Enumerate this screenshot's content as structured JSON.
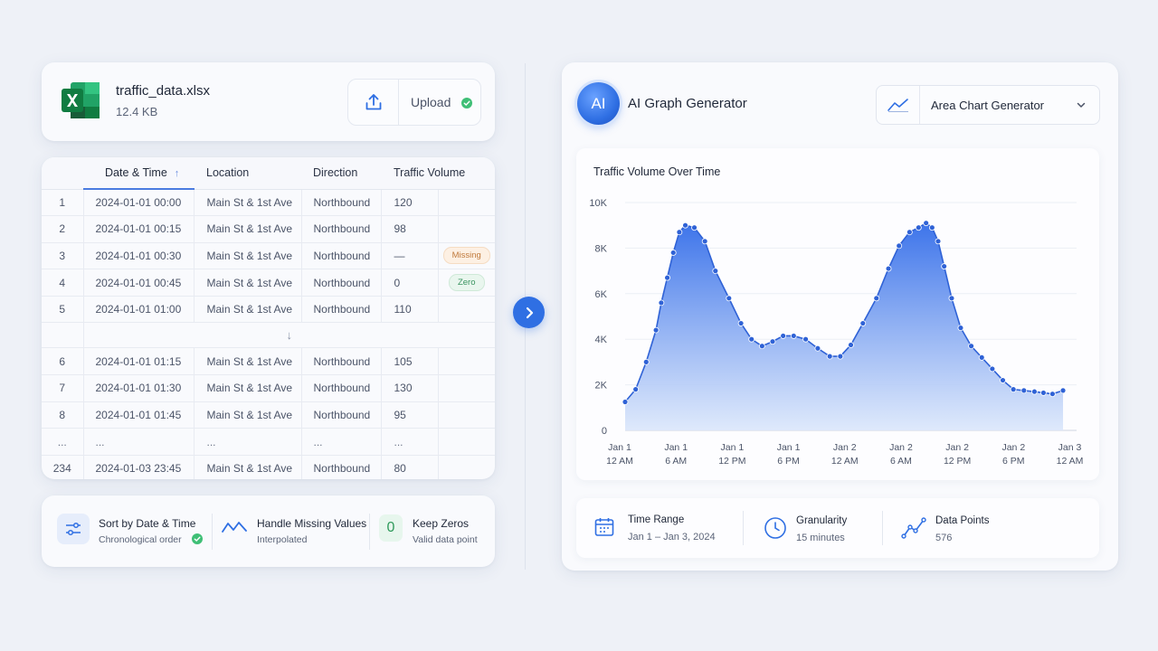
{
  "file": {
    "name": "traffic_data.xlsx",
    "size": "12.4 KB",
    "upload_label": "Upload",
    "icon": "excel-file-icon"
  },
  "table": {
    "headers": [
      "Date & Time",
      "Location",
      "Direction",
      "Traffic Volume"
    ],
    "rows_top": [
      {
        "n": "1",
        "date": "2024-01-01 00:00",
        "loc": "Main St & 1st Ave",
        "dir": "Northbound",
        "vol": "120",
        "badge": ""
      },
      {
        "n": "2",
        "date": "2024-01-01 00:15",
        "loc": "Main St & 1st Ave",
        "dir": "Northbound",
        "vol": "98",
        "badge": ""
      },
      {
        "n": "3",
        "date": "2024-01-01 00:30",
        "loc": "Main St & 1st Ave",
        "dir": "Northbound",
        "vol": "—",
        "badge": "Missing"
      },
      {
        "n": "4",
        "date": "2024-01-01 00:45",
        "loc": "Main St & 1st Ave",
        "dir": "Northbound",
        "vol": "0",
        "badge": "Zero"
      },
      {
        "n": "5",
        "date": "2024-01-01 01:00",
        "loc": "Main St & 1st Ave",
        "dir": "Northbound",
        "vol": "110",
        "badge": ""
      }
    ],
    "rows_bottom": [
      {
        "n": "6",
        "date": "2024-01-01 01:15",
        "loc": "Main St & 1st Ave",
        "dir": "Northbound",
        "vol": "105"
      },
      {
        "n": "7",
        "date": "2024-01-01 01:30",
        "loc": "Main St & 1st Ave",
        "dir": "Northbound",
        "vol": "130"
      },
      {
        "n": "8",
        "date": "2024-01-01 01:45",
        "loc": "Main St & 1st Ave",
        "dir": "Northbound",
        "vol": "95"
      },
      {
        "n": "...",
        "date": "...",
        "loc": "...",
        "dir": "...",
        "vol": "..."
      },
      {
        "n": "234",
        "date": "2024-01-03 23:45",
        "loc": "Main St & 1st Ave",
        "dir": "Northbound",
        "vol": "80"
      }
    ]
  },
  "steps": [
    {
      "title": "Sort by Date & Time",
      "sub": "Chronological order",
      "icon": "sort-sliders-icon"
    },
    {
      "title": "Handle Missing Values",
      "sub": "Interpolated",
      "icon": "wave-line-icon"
    },
    {
      "title": "Keep Zeros",
      "sub": "Valid data point",
      "icon_text": "0"
    }
  ],
  "generator": {
    "ai_badge": "AI",
    "title": "AI Graph Generator",
    "select_label": "Area Chart Generator"
  },
  "stats": [
    {
      "title": "Time Range",
      "value": "Jan 1 – Jan 3, 2024",
      "icon": "calendar-icon"
    },
    {
      "title": "Granularity",
      "value": "15 minutes",
      "icon": "clock-icon"
    },
    {
      "title": "Data Points",
      "value": "576",
      "icon": "trend-line-icon"
    }
  ],
  "colors": {
    "accent": "#2f6fe3",
    "area_top": "#3d74ea",
    "area_bottom": "#dbe7fb",
    "success": "#3fbf76"
  },
  "chart_data": {
    "type": "area",
    "title": "Traffic Volume Over Time",
    "xlabel": "",
    "ylabel": "",
    "ylim": [
      0,
      10000
    ],
    "y_ticks": [
      "0",
      "2K",
      "4K",
      "6K",
      "8K",
      "10K"
    ],
    "x_ticks": [
      [
        "Jan 1",
        "12 AM"
      ],
      [
        "Jan 1",
        "6 AM"
      ],
      [
        "Jan 1",
        "12 PM"
      ],
      [
        "Jan 1",
        "6 PM"
      ],
      [
        "Jan 2",
        "12 AM"
      ],
      [
        "Jan 2",
        "6 AM"
      ],
      [
        "Jan 2",
        "12 PM"
      ],
      [
        "Jan 2",
        "6 PM"
      ],
      [
        "Jan 3",
        "12 AM"
      ]
    ],
    "x_hours": [
      0,
      1.4,
      2.8,
      4.1,
      4.8,
      5.6,
      6.4,
      7.2,
      8.0,
      9.2,
      10.6,
      12.0,
      13.8,
      15.4,
      16.8,
      18.2,
      19.6,
      21.0,
      22.4,
      24.0,
      25.6,
      27.2,
      28.6,
      30.0,
      31.6,
      33.4,
      35.0,
      36.4,
      37.8,
      39.0,
      40.0,
      40.8,
      41.6,
      42.4,
      43.4,
      44.6,
      46.0,
      47.4,
      48.8,
      50.2,
      51.6,
      53.0,
      54.4,
      55.6,
      56.8,
      58.2
    ],
    "y_values": [
      1250,
      1800,
      3000,
      4400,
      5600,
      6700,
      7800,
      8700,
      9000,
      8900,
      8300,
      7000,
      5800,
      4700,
      4000,
      3700,
      3900,
      4150,
      4150,
      4000,
      3600,
      3250,
      3250,
      3750,
      4700,
      5800,
      7100,
      8100,
      8700,
      8900,
      9100,
      8900,
      8300,
      7200,
      5800,
      4500,
      3700,
      3200,
      2700,
      2200,
      1800,
      1750,
      1700,
      1650,
      1600,
      1750
    ]
  }
}
